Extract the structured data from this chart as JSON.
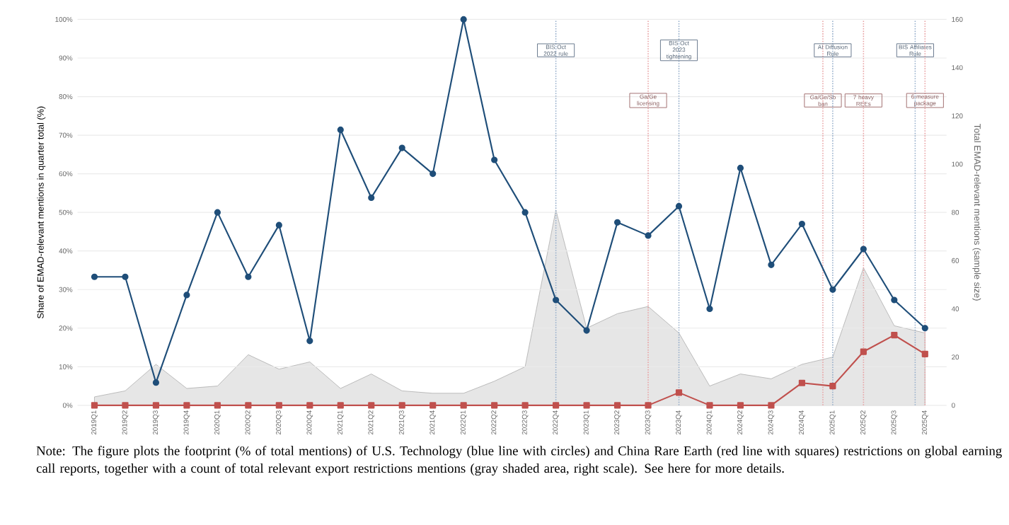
{
  "chart_data": {
    "type": "line",
    "categories": [
      "2019Q1",
      "2019Q2",
      "2019Q3",
      "2019Q4",
      "2020Q1",
      "2020Q2",
      "2020Q3",
      "2020Q4",
      "2021Q1",
      "2021Q2",
      "2021Q3",
      "2021Q4",
      "2022Q1",
      "2022Q2",
      "2022Q3",
      "2022Q4",
      "2023Q1",
      "2023Q2",
      "2023Q3",
      "2023Q4",
      "2024Q1",
      "2024Q2",
      "2024Q3",
      "2024Q4",
      "2025Q1",
      "2025Q2",
      "2025Q3",
      "2025Q4"
    ],
    "series": [
      {
        "type": "area",
        "axis": "y2",
        "color": "#e6e6e6",
        "marker": "none",
        "values": [
          3.5,
          6,
          17,
          7,
          8,
          21,
          15,
          18,
          7,
          13,
          6,
          5,
          5,
          10,
          16,
          81,
          32,
          38,
          41,
          30,
          8,
          13,
          11,
          17,
          20,
          57,
          33,
          30
        ]
      },
      {
        "color": "#1f4e79",
        "marker": "circle",
        "values": [
          33.3,
          33.3,
          5.9,
          28.6,
          50,
          33.3,
          46.7,
          16.7,
          71.4,
          53.8,
          66.7,
          60,
          100,
          63.6,
          50,
          27.3,
          19.4,
          47.4,
          44,
          51.6,
          25,
          61.5,
          36.4,
          47,
          30,
          40.5,
          27.3,
          20
        ]
      },
      {
        "color": "#c0504d",
        "marker": "square",
        "values": [
          0,
          0,
          0,
          0,
          0,
          0,
          0,
          0,
          0,
          0,
          0,
          0,
          0,
          0,
          0,
          0,
          0,
          0,
          0,
          3.3,
          0,
          0,
          0,
          5.8,
          5,
          13.9,
          18.2,
          13.3
        ]
      }
    ],
    "ylabel": "Share of EMAD-relevant mentions in quarter total (%)",
    "y2label": "Total EMAD-relevant mentions (sample size)",
    "ylim": [
      0,
      100
    ],
    "yticks": [
      {
        "value": 0,
        "label": "0%"
      },
      {
        "value": 10,
        "label": "10%"
      },
      {
        "value": 20,
        "label": "20%"
      },
      {
        "value": 30,
        "label": "30%"
      },
      {
        "value": 40,
        "label": "40%"
      },
      {
        "value": 50,
        "label": "50%"
      },
      {
        "value": 60,
        "label": "60%"
      },
      {
        "value": 70,
        "label": "70%"
      },
      {
        "value": 80,
        "label": "80%"
      },
      {
        "value": 90,
        "label": "90%"
      },
      {
        "value": 100,
        "label": "100%"
      }
    ],
    "y2lim": [
      0,
      160
    ],
    "y2ticks": [
      0,
      20,
      40,
      60,
      80,
      100,
      120,
      140,
      160
    ],
    "grid": "y",
    "ref_lines": [
      {
        "axis": "x",
        "value": "2022Q4",
        "label": "BIS Oct 2022 rule",
        "color": "#94adca",
        "line_style": "dotted"
      },
      {
        "axis": "x",
        "value": "2023Q3",
        "label": "Ga/Ge licensing",
        "color": "#e8a0a2",
        "line_style": "dotted"
      },
      {
        "axis": "x",
        "value": "2023Q4",
        "label": "BIS Oct 2023 tightening",
        "color": "#94adca",
        "line_style": "dotted"
      },
      {
        "axis": "x",
        "value": "2025Q1",
        "label": "Ga/Ge/Sb ban",
        "color": "#e8a0a2",
        "line_style": "dotted"
      },
      {
        "axis": "x",
        "value": "2025Q1",
        "label": "AI Diffusion Rule",
        "color": "#94adca",
        "line_style": "dotted"
      },
      {
        "axis": "x",
        "value": "2025Q2",
        "label": "7 heavy REEs",
        "color": "#e8a0a2",
        "line_style": "dotted"
      },
      {
        "axis": "x",
        "value": "2025Q4",
        "label": "BIS Affiliates Rule",
        "color": "#94adca",
        "line_style": "dotted"
      },
      {
        "axis": "x",
        "value": "2025Q4",
        "label": "6-measure package",
        "color": "#e8a0a2",
        "line_style": "dotted"
      }
    ],
    "annotations": [
      "Note: The figure plots the footprint (% of total mentions) of U.S. Technology (blue line with circles) and China Rare Earth (red line with squares) restrictions on global earning call reports, together with a count of total relevant export restrictions mentions (gray shaded area, right scale). See here for more details."
    ]
  }
}
